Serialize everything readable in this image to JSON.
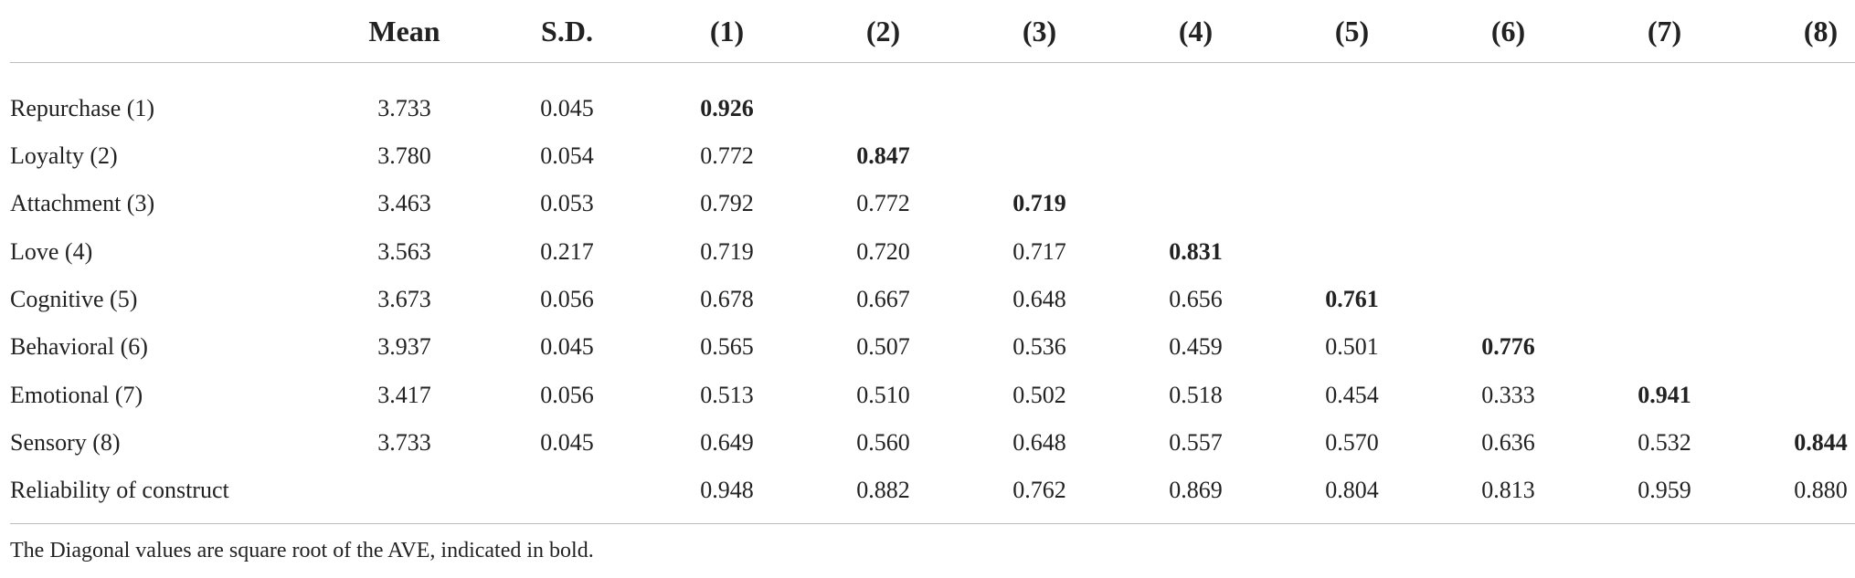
{
  "columns": [
    "",
    "Mean",
    "S.D.",
    "(1)",
    "(2)",
    "(3)",
    "(4)",
    "(5)",
    "(6)",
    "(7)",
    "(8)"
  ],
  "rows": [
    {
      "label": "Repurchase (1)",
      "cells": [
        "3.733",
        "0.045",
        "0.926",
        "",
        "",
        "",
        "",
        "",
        "",
        ""
      ],
      "bold_index": 2
    },
    {
      "label": "Loyalty (2)",
      "cells": [
        "3.780",
        "0.054",
        "0.772",
        "0.847",
        "",
        "",
        "",
        "",
        "",
        ""
      ],
      "bold_index": 3
    },
    {
      "label": "Attachment (3)",
      "cells": [
        "3.463",
        "0.053",
        "0.792",
        "0.772",
        "0.719",
        "",
        "",
        "",
        "",
        ""
      ],
      "bold_index": 4
    },
    {
      "label": "Love (4)",
      "cells": [
        "3.563",
        "0.217",
        "0.719",
        "0.720",
        "0.717",
        "0.831",
        "",
        "",
        "",
        ""
      ],
      "bold_index": 5
    },
    {
      "label": "Cognitive (5)",
      "cells": [
        "3.673",
        "0.056",
        "0.678",
        "0.667",
        "0.648",
        "0.656",
        "0.761",
        "",
        "",
        ""
      ],
      "bold_index": 6
    },
    {
      "label": "Behavioral (6)",
      "cells": [
        "3.937",
        "0.045",
        "0.565",
        "0.507",
        "0.536",
        "0.459",
        "0.501",
        "0.776",
        "",
        ""
      ],
      "bold_index": 7
    },
    {
      "label": "Emotional (7)",
      "cells": [
        "3.417",
        "0.056",
        "0.513",
        "0.510",
        "0.502",
        "0.518",
        "0.454",
        "0.333",
        "0.941",
        ""
      ],
      "bold_index": 8
    },
    {
      "label": "Sensory (8)",
      "cells": [
        "3.733",
        "0.045",
        "0.649",
        "0.560",
        "0.648",
        "0.557",
        "0.570",
        "0.636",
        "0.532",
        "0.844"
      ],
      "bold_index": 9
    },
    {
      "label": "Reliability of construct",
      "cells": [
        "",
        "",
        "0.948",
        "0.882",
        "0.762",
        "0.869",
        "0.804",
        "0.813",
        "0.959",
        "0.880"
      ],
      "bold_index": -1
    }
  ],
  "footnote": "The Diagonal values are square root of the AVE, indicated in bold."
}
